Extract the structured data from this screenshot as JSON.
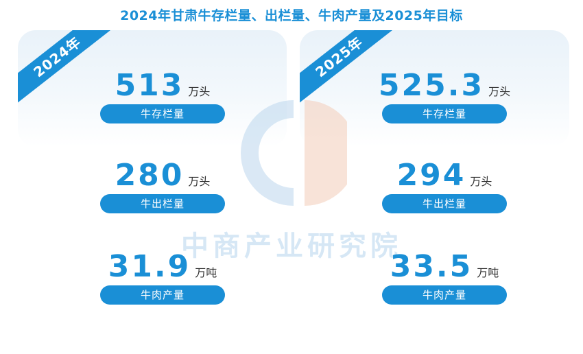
{
  "title": "2024年甘肃牛存栏量、出栏量、牛肉产量及2025年目标",
  "watermark": "中商产业研究院",
  "colors": {
    "accent": "#1a8fd6",
    "panel": "#eaf3fa",
    "watermark_blue": "#cfe3f3",
    "watermark_orange": "#f6d9cc"
  },
  "left": {
    "year": "2024年",
    "metrics": [
      {
        "value": "513",
        "unit": "万头",
        "label": "牛存栏量"
      },
      {
        "value": "280",
        "unit": "万头",
        "label": "牛出栏量"
      },
      {
        "value": "31.9",
        "unit": "万吨",
        "label": "牛肉产量"
      }
    ]
  },
  "right": {
    "year": "2025年",
    "metrics": [
      {
        "value": "525.3",
        "unit": "万头",
        "label": "牛存栏量"
      },
      {
        "value": "294",
        "unit": "万头",
        "label": "牛出栏量"
      },
      {
        "value": "33.5",
        "unit": "万吨",
        "label": "牛肉产量"
      }
    ]
  }
}
